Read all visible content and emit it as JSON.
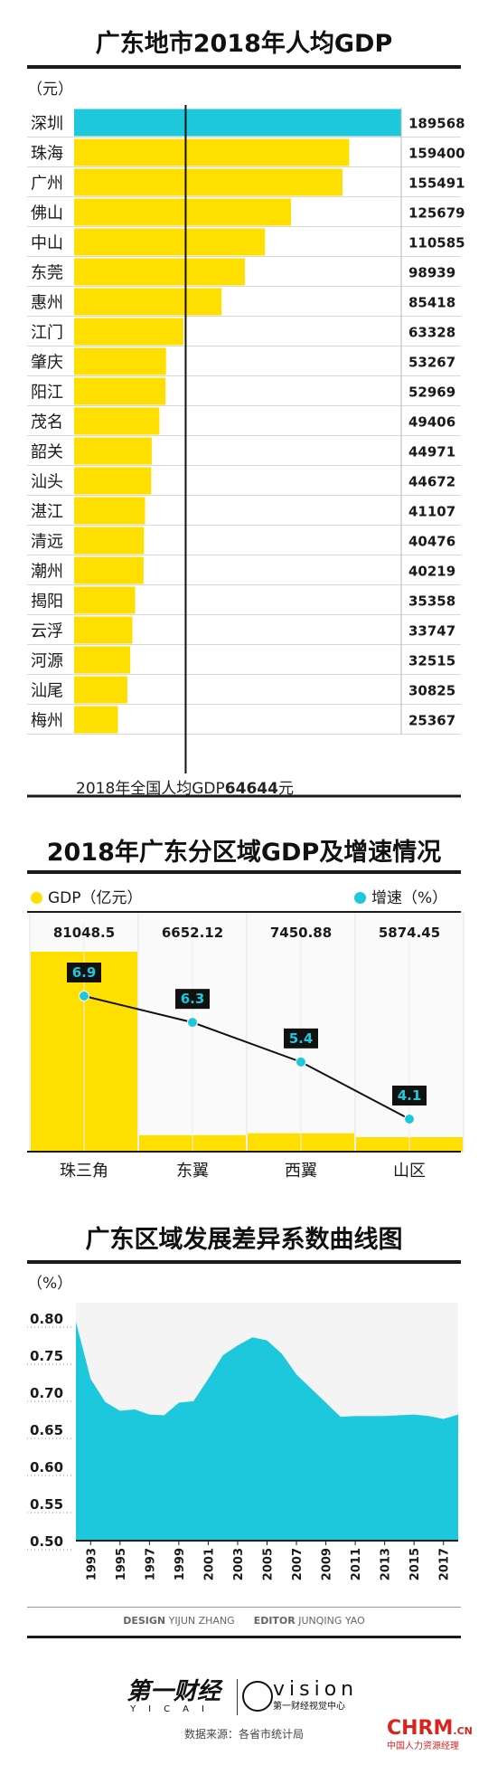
{
  "charts": {
    "c1": {
      "title": "广东地市2018年人均GDP",
      "unit": "（元）",
      "reference_label": "2018年全国人均GDP",
      "reference_value": "64644",
      "reference_suffix": "元"
    },
    "c2": {
      "title": "2018年广东分区域GDP及增速情况",
      "legend_gdp": "GDP（亿元）",
      "legend_growth": "增速（%）"
    },
    "c3": {
      "title": "广东区域发展差异系数曲线图",
      "unit": "（%）"
    }
  },
  "chart_data": [
    {
      "type": "bar",
      "orientation": "horizontal",
      "title": "广东地市2018年人均GDP",
      "unit": "（元）",
      "categories": [
        "深圳",
        "珠海",
        "广州",
        "佛山",
        "中山",
        "东莞",
        "惠州",
        "江门",
        "肇庆",
        "阳江",
        "茂名",
        "韶关",
        "汕头",
        "湛江",
        "清远",
        "潮州",
        "揭阳",
        "云浮",
        "河源",
        "汕尾",
        "梅州"
      ],
      "values": [
        189568,
        159400,
        155491,
        125679,
        110585,
        98939,
        85418,
        63328,
        53267,
        52969,
        49406,
        44971,
        44672,
        41107,
        40476,
        40219,
        35358,
        33747,
        32515,
        30825,
        25367
      ],
      "highlight_color": "#1ec8dc",
      "bar_color": "#ffdf00",
      "reference_line": {
        "label": "2018年全国人均GDP64644元",
        "value": 64644
      }
    },
    {
      "type": "bar",
      "title": "2018年广东分区域GDP及增速情况",
      "categories": [
        "珠三角",
        "东翼",
        "西翼",
        "山区"
      ],
      "series": [
        {
          "name": "GDP（亿元）",
          "values": [
            81048.5,
            6652.12,
            7450.88,
            5874.45
          ],
          "labels": [
            "81048.5",
            "6652.12",
            "7450.88",
            "5874.45"
          ],
          "color": "#ffdf00"
        },
        {
          "name": "增速（%）",
          "type": "line",
          "values": [
            6.9,
            6.3,
            5.4,
            4.1
          ],
          "labels": [
            "6.9",
            "6.3",
            "5.4",
            "4.1"
          ],
          "color": "#1ec8dc"
        }
      ]
    },
    {
      "type": "area",
      "title": "广东区域发展差异系数曲线图",
      "unit": "（%）",
      "ylim": [
        0.5,
        0.8
      ],
      "yticks": [
        "0.80",
        "0.75",
        "0.70",
        "0.65",
        "0.60",
        "0.55",
        "0.50"
      ],
      "xticks": [
        "1993",
        "1995",
        "1997",
        "1999",
        "2001",
        "2003",
        "2005",
        "2007",
        "2009",
        "2011",
        "2013",
        "2015",
        "2017"
      ],
      "x": [
        1992,
        1993,
        1994,
        1995,
        1996,
        1997,
        1998,
        1999,
        2000,
        2001,
        2002,
        2003,
        2004,
        2005,
        2006,
        2007,
        2008,
        2009,
        2010,
        2011,
        2012,
        2013,
        2014,
        2015,
        2016,
        2017,
        2018
      ],
      "values": [
        0.795,
        0.718,
        0.687,
        0.675,
        0.677,
        0.67,
        0.669,
        0.686,
        0.688,
        0.718,
        0.75,
        0.763,
        0.774,
        0.77,
        0.752,
        0.724,
        0.705,
        0.686,
        0.667,
        0.668,
        0.668,
        0.668,
        0.669,
        0.67,
        0.668,
        0.664,
        0.67
      ],
      "color": "#1ec8dc"
    }
  ],
  "footer": {
    "design_label": "DESIGN",
    "design_name": "YIJUN ZHANG",
    "editor_label": "EDITOR",
    "editor_name": "JUNQING YAO",
    "brand1": "第一财经",
    "brand1_sub": "YICAI",
    "brand2": "vision",
    "brand2_sub": "第一财经视觉中心",
    "source": "数据来源：各省市统计局",
    "watermark_main": "CHRM",
    "watermark_cn": ".CN",
    "watermark_sub": "中国人力资源经理"
  }
}
